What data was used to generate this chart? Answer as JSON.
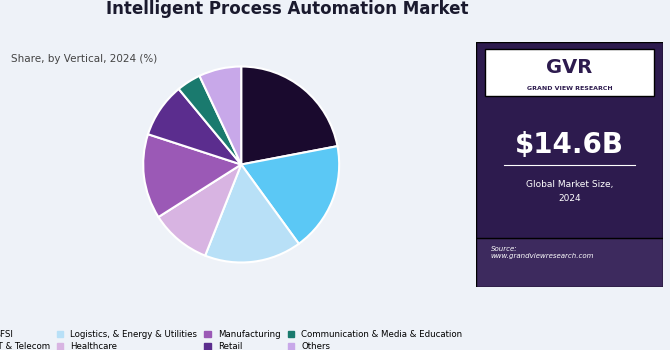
{
  "title": "Intelligent Process Automation Market",
  "subtitle": "Share, by Vertical, 2024 (%)",
  "segments": [
    {
      "label": "BFSI",
      "value": 22,
      "color": "#1a0a2e"
    },
    {
      "label": "IT & Telecom",
      "value": 18,
      "color": "#5bc8f5"
    },
    {
      "label": "Logistics, & Energy & Utilities",
      "value": 16,
      "color": "#b8e0f7"
    },
    {
      "label": "Healthcare",
      "value": 10,
      "color": "#d8b4e2"
    },
    {
      "label": "Manufacturing",
      "value": 14,
      "color": "#9b59b6"
    },
    {
      "label": "Retail",
      "value": 9,
      "color": "#5b2d8e"
    },
    {
      "label": "Communication & Media & Education",
      "value": 4,
      "color": "#1a7a6e"
    },
    {
      "label": "Others",
      "value": 7,
      "color": "#c8a8e9"
    }
  ],
  "right_panel_bg": "#2d1b4e",
  "right_panel_accent": "#4a3570",
  "market_size": "$14.6B",
  "market_label1": "Global Market Size,",
  "market_label2": "2024",
  "source_text": "Source:\nwww.grandviewresearch.com",
  "chart_bg": "#eef2f8",
  "startangle": 90,
  "legend_ncol": 4
}
